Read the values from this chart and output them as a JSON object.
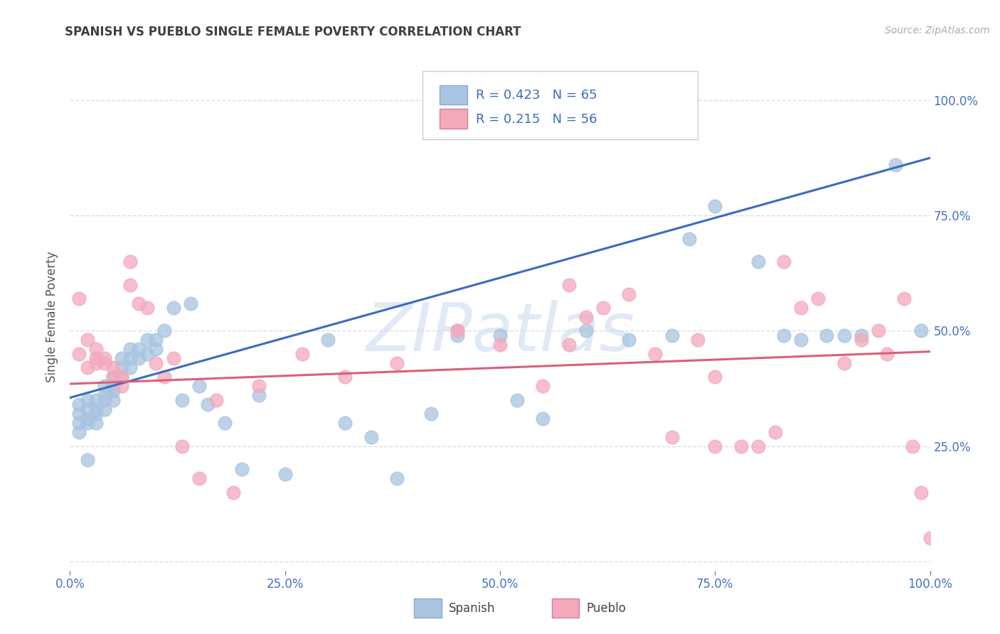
{
  "title": "SPANISH VS PUEBLO SINGLE FEMALE POVERTY CORRELATION CHART",
  "source": "Source: ZipAtlas.com",
  "ylabel": "Single Female Poverty",
  "xlim": [
    0,
    1
  ],
  "ylim": [
    -0.02,
    1.08
  ],
  "xticks": [
    0.0,
    0.25,
    0.5,
    0.75,
    1.0
  ],
  "yticks": [
    0.0,
    0.25,
    0.5,
    0.75,
    1.0
  ],
  "xtick_labels": [
    "0.0%",
    "25.0%",
    "50.0%",
    "75.0%",
    "100.0%"
  ],
  "ytick_labels": [
    "",
    "25.0%",
    "50.0%",
    "75.0%",
    "100.0%"
  ],
  "legend_R_spanish": "R = 0.423",
  "legend_N_spanish": "N = 65",
  "legend_R_pueblo": "R = 0.215",
  "legend_N_pueblo": "N = 56",
  "spanish_color": "#a8c4e0",
  "pueblo_color": "#f4a8bc",
  "trend_spanish_color": "#3a6bbf",
  "trend_pueblo_color": "#d9607a",
  "watermark_text": "ZIPatlas",
  "background_color": "#ffffff",
  "grid_color": "#dddddd",
  "title_color": "#404040",
  "tick_color": "#4472c4",
  "spanish_x": [
    0.01,
    0.01,
    0.01,
    0.01,
    0.02,
    0.02,
    0.02,
    0.02,
    0.02,
    0.03,
    0.03,
    0.03,
    0.03,
    0.04,
    0.04,
    0.04,
    0.04,
    0.05,
    0.05,
    0.05,
    0.05,
    0.06,
    0.06,
    0.06,
    0.07,
    0.07,
    0.07,
    0.08,
    0.08,
    0.09,
    0.09,
    0.1,
    0.1,
    0.11,
    0.12,
    0.13,
    0.14,
    0.15,
    0.16,
    0.18,
    0.2,
    0.22,
    0.25,
    0.3,
    0.32,
    0.35,
    0.38,
    0.42,
    0.45,
    0.5,
    0.52,
    0.55,
    0.6,
    0.65,
    0.7,
    0.72,
    0.75,
    0.8,
    0.83,
    0.85,
    0.88,
    0.9,
    0.92,
    0.96,
    0.99
  ],
  "spanish_y": [
    0.28,
    0.3,
    0.32,
    0.34,
    0.3,
    0.31,
    0.33,
    0.35,
    0.22,
    0.3,
    0.32,
    0.33,
    0.35,
    0.33,
    0.35,
    0.36,
    0.38,
    0.35,
    0.37,
    0.38,
    0.4,
    0.4,
    0.42,
    0.44,
    0.42,
    0.44,
    0.46,
    0.44,
    0.46,
    0.45,
    0.48,
    0.46,
    0.48,
    0.5,
    0.55,
    0.35,
    0.56,
    0.38,
    0.34,
    0.3,
    0.2,
    0.36,
    0.19,
    0.48,
    0.3,
    0.27,
    0.18,
    0.32,
    0.49,
    0.49,
    0.35,
    0.31,
    0.5,
    0.48,
    0.49,
    0.7,
    0.77,
    0.65,
    0.49,
    0.48,
    0.49,
    0.49,
    0.49,
    0.86,
    0.5
  ],
  "pueblo_x": [
    0.01,
    0.01,
    0.02,
    0.02,
    0.03,
    0.03,
    0.03,
    0.04,
    0.04,
    0.05,
    0.05,
    0.06,
    0.06,
    0.07,
    0.07,
    0.08,
    0.09,
    0.1,
    0.11,
    0.12,
    0.13,
    0.15,
    0.17,
    0.19,
    0.22,
    0.27,
    0.32,
    0.38,
    0.45,
    0.5,
    0.55,
    0.58,
    0.6,
    0.62,
    0.65,
    0.68,
    0.7,
    0.73,
    0.75,
    0.78,
    0.8,
    0.82,
    0.83,
    0.85,
    0.87,
    0.9,
    0.92,
    0.94,
    0.95,
    0.97,
    0.98,
    0.99,
    1.0,
    0.58,
    0.45,
    0.75
  ],
  "pueblo_y": [
    0.57,
    0.45,
    0.48,
    0.42,
    0.43,
    0.44,
    0.46,
    0.43,
    0.44,
    0.4,
    0.42,
    0.38,
    0.4,
    0.65,
    0.6,
    0.56,
    0.55,
    0.43,
    0.4,
    0.44,
    0.25,
    0.18,
    0.35,
    0.15,
    0.38,
    0.45,
    0.4,
    0.43,
    0.5,
    0.47,
    0.38,
    0.6,
    0.53,
    0.55,
    0.58,
    0.45,
    0.27,
    0.48,
    0.25,
    0.25,
    0.25,
    0.28,
    0.65,
    0.55,
    0.57,
    0.43,
    0.48,
    0.5,
    0.45,
    0.57,
    0.25,
    0.15,
    0.05,
    0.47,
    0.5,
    0.4
  ],
  "spanish_trend_x0": 0.0,
  "spanish_trend_x1": 1.0,
  "spanish_trend_y0": 0.355,
  "spanish_trend_y1": 0.875,
  "pueblo_trend_x0": 0.0,
  "pueblo_trend_x1": 1.0,
  "pueblo_trend_y0": 0.385,
  "pueblo_trend_y1": 0.455
}
